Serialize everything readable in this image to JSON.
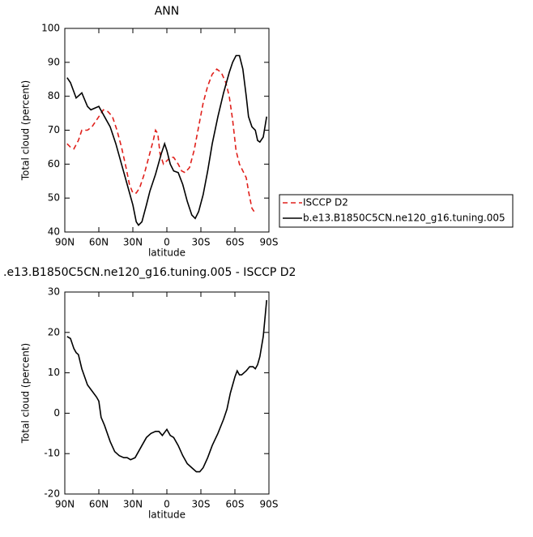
{
  "chart_data": [
    {
      "type": "line",
      "title": "ANN",
      "xlabel": "latitude",
      "ylabel": "Total cloud (percent)",
      "xlim": [
        90,
        -90
      ],
      "xticks": [
        {
          "value": 90,
          "label": "90N"
        },
        {
          "value": 60,
          "label": "60N"
        },
        {
          "value": 30,
          "label": "30N"
        },
        0,
        {
          "value": -30,
          "label": "30S"
        },
        {
          "value": -60,
          "label": "60S"
        },
        {
          "value": -90,
          "label": "90S"
        }
      ],
      "ylim": [
        40,
        100
      ],
      "yticks": [
        40,
        50,
        60,
        70,
        80,
        90,
        100
      ],
      "legend": "right",
      "series": [
        {
          "name": "ISCCP D2",
          "color": "#e0201b",
          "dash": "dashed",
          "x": [
            88,
            85,
            82,
            78,
            75,
            70,
            66,
            60,
            56,
            52,
            48,
            44,
            40,
            36,
            33,
            30,
            27,
            24,
            20,
            16,
            12,
            10,
            8,
            6,
            3,
            0,
            -3,
            -6,
            -10,
            -13,
            -16,
            -20,
            -24,
            -28,
            -32,
            -36,
            -40,
            -44,
            -48,
            -52,
            -55,
            -58,
            -61,
            -64,
            -67,
            -70,
            -72,
            -75,
            -78
          ],
          "values": [
            66,
            65,
            64.5,
            67,
            70,
            70,
            71,
            74,
            76,
            75.5,
            74,
            70,
            65,
            59,
            54,
            51.5,
            51.5,
            53,
            57,
            62,
            67,
            70,
            69,
            63,
            60,
            61,
            62,
            62,
            60,
            58,
            57.5,
            59,
            64,
            71,
            78,
            83,
            86.5,
            88,
            87,
            84,
            80,
            73,
            64,
            60,
            58,
            56,
            52,
            47,
            45.5
          ]
        },
        {
          "name": "b.e13.B1850C5CN.ne120_g16.tuning.005",
          "color": "#000000",
          "dash": "solid",
          "x": [
            88,
            85,
            80,
            75,
            70,
            67,
            60,
            55,
            50,
            45,
            40,
            35,
            30,
            27,
            25,
            22,
            18,
            15,
            10,
            5,
            2,
            0,
            -3,
            -6,
            -10,
            -14,
            -18,
            -22,
            -25,
            -28,
            -32,
            -36,
            -40,
            -45,
            -50,
            -55,
            -58,
            -61,
            -64,
            -67,
            -70,
            -72,
            -75,
            -78,
            -80,
            -82,
            -85,
            -88
          ],
          "values": [
            85.5,
            84,
            79.5,
            81,
            77,
            76,
            77,
            74,
            71,
            66,
            60,
            54,
            48,
            43,
            42,
            43,
            48,
            52,
            57,
            63,
            66,
            64,
            60,
            58,
            57.5,
            54,
            49,
            45,
            44,
            46,
            51,
            58,
            66,
            74,
            81,
            87,
            90,
            92,
            92,
            88,
            80,
            74,
            71,
            70,
            67,
            66.5,
            68,
            74
          ]
        }
      ]
    },
    {
      "type": "line",
      "title": ".e13.B1850C5CN.ne120_g16.tuning.005 - ISCCP D2",
      "xlabel": "latitude",
      "ylabel": "Total cloud (percent)",
      "xlim": [
        90,
        -90
      ],
      "xticks": [
        {
          "value": 90,
          "label": "90N"
        },
        {
          "value": 60,
          "label": "60N"
        },
        {
          "value": 30,
          "label": "30N"
        },
        0,
        {
          "value": -30,
          "label": "30S"
        },
        {
          "value": -60,
          "label": "60S"
        },
        {
          "value": -90,
          "label": "90S"
        }
      ],
      "ylim": [
        -20,
        30
      ],
      "yticks": [
        -20,
        -10,
        0,
        10,
        20,
        30
      ],
      "series": [
        {
          "color": "#000000",
          "dash": "solid",
          "x": [
            88,
            85,
            82,
            80,
            78,
            75,
            70,
            66,
            62,
            60,
            58,
            55,
            50,
            46,
            42,
            38,
            35,
            32,
            28,
            25,
            22,
            18,
            14,
            10,
            7,
            4,
            0,
            -3,
            -6,
            -10,
            -14,
            -18,
            -22,
            -26,
            -29,
            -32,
            -36,
            -40,
            -45,
            -50,
            -53,
            -56,
            -60,
            -62,
            -64,
            -66,
            -70,
            -73,
            -76,
            -78,
            -80,
            -82,
            -85,
            -88
          ],
          "values": [
            19,
            18.5,
            16,
            15,
            14.5,
            11,
            7,
            5.5,
            4,
            3,
            -1,
            -3,
            -7,
            -9.5,
            -10.5,
            -11,
            -11,
            -11.5,
            -11,
            -9.5,
            -8,
            -6,
            -5,
            -4.5,
            -4.5,
            -5.5,
            -4,
            -5.5,
            -6,
            -8,
            -10.5,
            -12.5,
            -13.5,
            -14.5,
            -14.5,
            -13.5,
            -11,
            -8,
            -5,
            -1.5,
            1,
            5,
            9,
            10.5,
            9.5,
            9.5,
            10.5,
            11.5,
            11.5,
            11,
            12,
            14,
            19,
            28
          ]
        }
      ]
    }
  ]
}
